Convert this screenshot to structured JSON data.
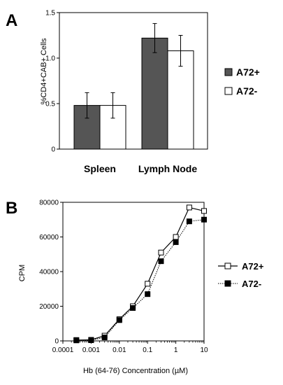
{
  "chart_data": [
    {
      "panel": "A",
      "type": "bar",
      "categories": [
        "Spleen",
        "Lymph Node"
      ],
      "series": [
        {
          "name": "A72+",
          "values": [
            0.48,
            1.22
          ],
          "errors": [
            0.14,
            0.16
          ],
          "color": "#555555"
        },
        {
          "name": "A72-",
          "values": [
            0.48,
            1.08
          ],
          "errors": [
            0.14,
            0.17
          ],
          "color": "#ffffff"
        }
      ],
      "ylabel": "%CD4+CAB+ Cells",
      "ylim": [
        0,
        1.5
      ],
      "yticks": [
        "0",
        "0.5",
        "1.0",
        "1.5"
      ],
      "legend_position": "right"
    },
    {
      "panel": "B",
      "type": "line",
      "xscale": "log",
      "xlabel": "Hb (64-76) Concentration (µM)",
      "ylabel": "CPM",
      "xlim": [
        0.0001,
        10
      ],
      "ylim": [
        0,
        80000
      ],
      "xticks": [
        "0.0001",
        "0.001",
        "0.01",
        "0.1",
        "1",
        "10"
      ],
      "yticks": [
        "0",
        "20000",
        "40000",
        "60000",
        "80000"
      ],
      "series": [
        {
          "name": "A72+",
          "marker": "open-square",
          "line": "solid",
          "x": [
            0.0003,
            0.001,
            0.003,
            0.01,
            0.03,
            0.1,
            0.3,
            1,
            3,
            10
          ],
          "y": [
            500,
            600,
            3000,
            12500,
            20000,
            33000,
            51000,
            60000,
            77000,
            75000
          ]
        },
        {
          "name": "A72-",
          "marker": "filled-square",
          "line": "dotted",
          "x": [
            0.0003,
            0.001,
            0.003,
            0.01,
            0.03,
            0.1,
            0.3,
            1,
            3,
            10
          ],
          "y": [
            300,
            400,
            2000,
            12000,
            19000,
            27000,
            46000,
            57000,
            69000,
            70000
          ]
        }
      ],
      "legend_position": "right"
    }
  ]
}
